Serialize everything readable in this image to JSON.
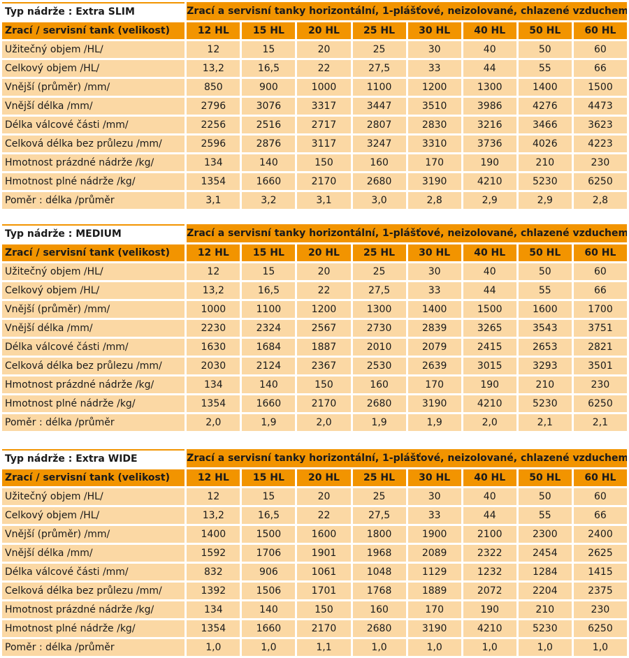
{
  "description_header": "Zrací  a  servisní tanky horizontální, 1-plášťové, neizolované, chlazené vzduchem",
  "size_header_label": "Zrací / servisní tank (velikost)",
  "sizes": [
    "12 HL",
    "15 HL",
    "20 HL",
    "25 HL",
    "30 HL",
    "40 HL",
    "50 HL",
    "60 HL"
  ],
  "tables": [
    {
      "type_label": "Typ nádrže : Extra SLIM",
      "rows": [
        {
          "label": "Užitečný objem /HL/",
          "values": [
            "12",
            "15",
            "20",
            "25",
            "30",
            "40",
            "50",
            "60"
          ]
        },
        {
          "label": "Celkový objem /HL/",
          "values": [
            "13,2",
            "16,5",
            "22",
            "27,5",
            "33",
            "44",
            "55",
            "66"
          ]
        },
        {
          "label": "Vnější (průměr) /mm/",
          "values": [
            "850",
            "900",
            "1000",
            "1100",
            "1200",
            "1300",
            "1400",
            "1500"
          ]
        },
        {
          "label": "Vnější délka /mm/",
          "values": [
            "2796",
            "3076",
            "3317",
            "3447",
            "3510",
            "3986",
            "4276",
            "4473"
          ]
        },
        {
          "label": "Délka válcové části /mm/",
          "values": [
            "2256",
            "2516",
            "2717",
            "2807",
            "2830",
            "3216",
            "3466",
            "3623"
          ]
        },
        {
          "label": "Celková délka bez průlezu /mm/",
          "values": [
            "2596",
            "2876",
            "3117",
            "3247",
            "3310",
            "3736",
            "4026",
            "4223"
          ]
        },
        {
          "label": "Hmotnost prázdné nádrže /kg/",
          "values": [
            "134",
            "140",
            "150",
            "160",
            "170",
            "190",
            "210",
            "230"
          ]
        },
        {
          "label": "Hmotnost plné nádrže /kg/",
          "values": [
            "1354",
            "1660",
            "2170",
            "2680",
            "3190",
            "4210",
            "5230",
            "6250"
          ]
        },
        {
          "label": "Poměr :  délka  /průměr",
          "values": [
            "3,1",
            "3,2",
            "3,1",
            "3,0",
            "2,8",
            "2,9",
            "2,9",
            "2,8"
          ]
        }
      ]
    },
    {
      "type_label": "Typ nádrže : MEDIUM",
      "rows": [
        {
          "label": "Užitečný objem /HL/",
          "values": [
            "12",
            "15",
            "20",
            "25",
            "30",
            "40",
            "50",
            "60"
          ]
        },
        {
          "label": "Celkový objem /HL/",
          "values": [
            "13,2",
            "16,5",
            "22",
            "27,5",
            "33",
            "44",
            "55",
            "66"
          ]
        },
        {
          "label": "Vnější (průměr) /mm/",
          "values": [
            "1000",
            "1100",
            "1200",
            "1300",
            "1400",
            "1500",
            "1600",
            "1700"
          ]
        },
        {
          "label": "Vnější délka /mm/",
          "values": [
            "2230",
            "2324",
            "2567",
            "2730",
            "2839",
            "3265",
            "3543",
            "3751"
          ]
        },
        {
          "label": "Délka válcové části /mm/",
          "values": [
            "1630",
            "1684",
            "1887",
            "2010",
            "2079",
            "2415",
            "2653",
            "2821"
          ]
        },
        {
          "label": "Celková délka bez průlezu /mm/",
          "values": [
            "2030",
            "2124",
            "2367",
            "2530",
            "2639",
            "3015",
            "3293",
            "3501"
          ]
        },
        {
          "label": "Hmotnost prázdné nádrže /kg/",
          "values": [
            "134",
            "140",
            "150",
            "160",
            "170",
            "190",
            "210",
            "230"
          ]
        },
        {
          "label": "Hmotnost plné nádrže /kg/",
          "values": [
            "1354",
            "1660",
            "2170",
            "2680",
            "3190",
            "4210",
            "5230",
            "6250"
          ]
        },
        {
          "label": "Poměr :  délka  /průměr",
          "values": [
            "2,0",
            "1,9",
            "2,0",
            "1,9",
            "1,9",
            "2,0",
            "2,1",
            "2,1"
          ]
        }
      ]
    },
    {
      "type_label": "Typ nádrže : Extra WIDE",
      "rows": [
        {
          "label": "Užitečný objem /HL/",
          "values": [
            "12",
            "15",
            "20",
            "25",
            "30",
            "40",
            "50",
            "60"
          ]
        },
        {
          "label": "Celkový objem /HL/",
          "values": [
            "13,2",
            "16,5",
            "22",
            "27,5",
            "33",
            "44",
            "55",
            "66"
          ]
        },
        {
          "label": "Vnější (průměr) /mm/",
          "values": [
            "1400",
            "1500",
            "1600",
            "1800",
            "1900",
            "2100",
            "2300",
            "2400"
          ]
        },
        {
          "label": "Vnější délka /mm/",
          "values": [
            "1592",
            "1706",
            "1901",
            "1968",
            "2089",
            "2322",
            "2454",
            "2625"
          ]
        },
        {
          "label": "Délka válcové části /mm/",
          "values": [
            "832",
            "906",
            "1061",
            "1048",
            "1129",
            "1232",
            "1284",
            "1415"
          ]
        },
        {
          "label": "Celková délka bez průlezu /mm/",
          "values": [
            "1392",
            "1506",
            "1701",
            "1768",
            "1889",
            "2072",
            "2204",
            "2375"
          ]
        },
        {
          "label": "Hmotnost prázdné nádrže /kg/",
          "values": [
            "134",
            "140",
            "150",
            "160",
            "170",
            "190",
            "210",
            "230"
          ]
        },
        {
          "label": "Hmotnost plné nádrže /kg/",
          "values": [
            "1354",
            "1660",
            "2170",
            "2680",
            "3190",
            "4210",
            "5230",
            "6250"
          ]
        },
        {
          "label": "Poměr :  délka  /průměr",
          "values": [
            "1,0",
            "1,0",
            "1,1",
            "1,0",
            "1,0",
            "1,0",
            "1,0",
            "1,0"
          ]
        }
      ]
    }
  ]
}
